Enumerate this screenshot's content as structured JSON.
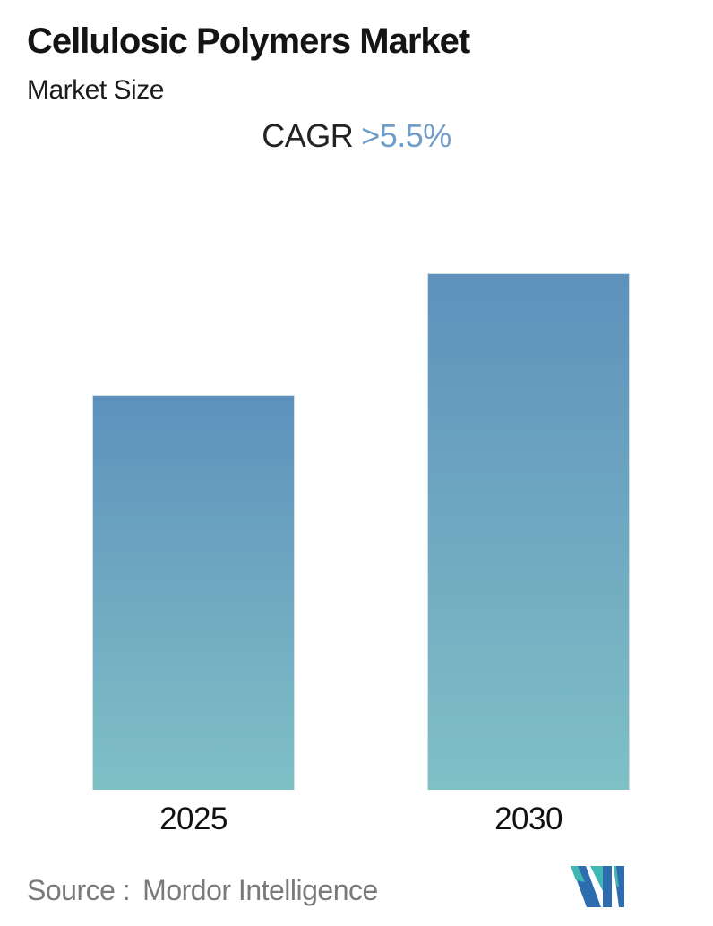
{
  "header": {
    "title": "Cellulosic Polymers Market",
    "subtitle": "Market Size",
    "cagr_label": "CAGR",
    "cagr_value": ">5.5%",
    "cagr_value_color": "#6f9dc9"
  },
  "chart_data": {
    "type": "bar",
    "title": "Cellulosic Polymers Market",
    "subtitle": "Market Size",
    "categories": [
      "2025",
      "2030"
    ],
    "series": [
      {
        "name": "Market Size",
        "values": [
          1.0,
          1.307
        ],
        "units": "relative (no value axis or data labels shown; 2030 ≈ 1.31 × 2025, consistent with CAGR >5.5% over 5 years)"
      }
    ],
    "annotations": [
      {
        "text": "CAGR >5.5%",
        "position": "top-center"
      }
    ],
    "axes": {
      "x_ticks": [
        "2025",
        "2030"
      ],
      "y_axis_visible": false,
      "gridlines": false
    },
    "legend": {
      "visible": false
    },
    "value_labels_shown": false,
    "style": {
      "bar_gradient_top": "#5e91bc",
      "bar_gradient_bottom": "#7fc0c6",
      "bar_border": "#cfe2ec",
      "background": "#ffffff"
    }
  },
  "footer": {
    "source_label": "Source :",
    "source_value": "Mordor Intelligence",
    "source_text_color": "#7a7a7a",
    "logo": {
      "name": "Mordor Intelligence logo mark",
      "blue": "#2d6cae",
      "teal": "#3fb7b4"
    }
  }
}
